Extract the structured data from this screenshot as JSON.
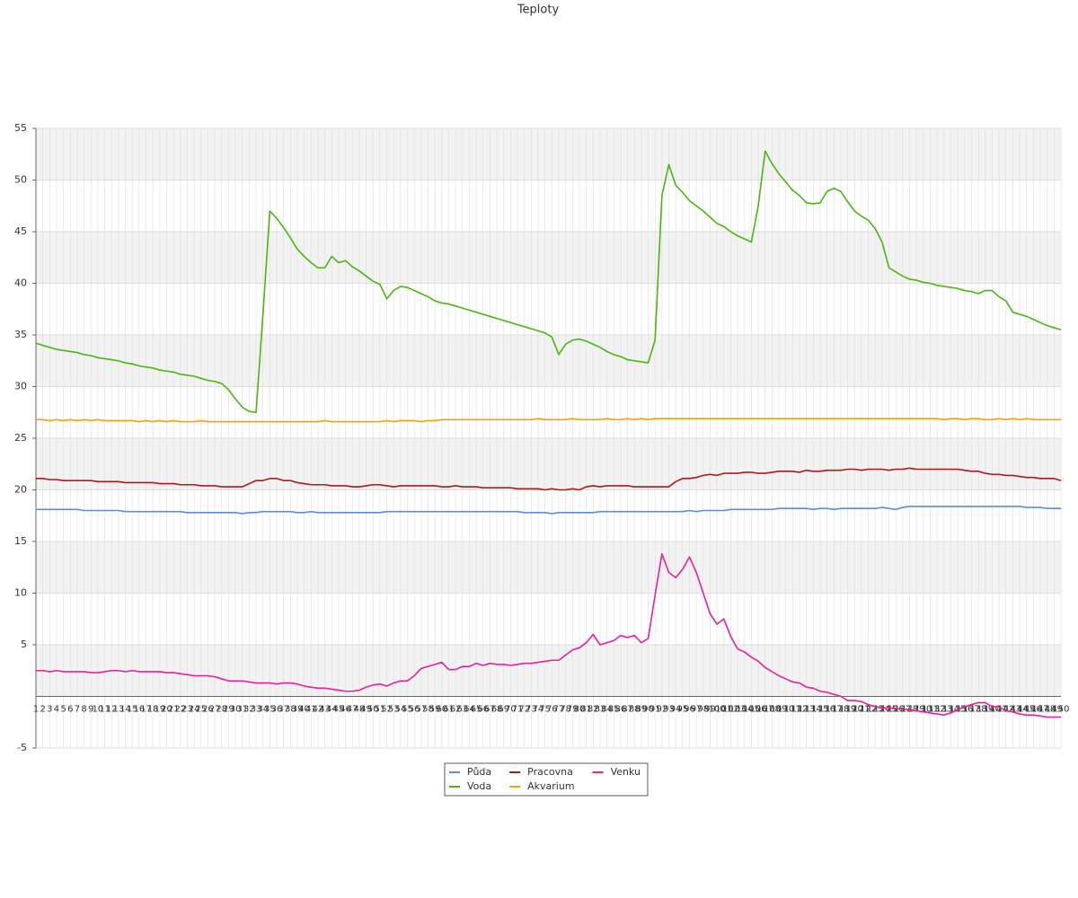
{
  "chart_data": {
    "type": "line",
    "title": "Teploty",
    "categories": [
      1,
      2,
      3,
      4,
      5,
      6,
      7,
      8,
      9,
      10,
      11,
      12,
      13,
      14,
      15,
      16,
      17,
      18,
      19,
      20,
      21,
      22,
      23,
      24,
      25,
      26,
      27,
      28,
      29,
      30,
      31,
      32,
      33,
      34,
      35,
      36,
      37,
      38,
      39,
      40,
      41,
      42,
      43,
      44,
      45,
      46,
      47,
      48,
      49,
      50,
      51,
      52,
      53,
      54,
      55,
      56,
      57,
      58,
      59,
      60,
      61,
      62,
      63,
      64,
      65,
      66,
      67,
      68,
      69,
      70,
      71,
      72,
      73,
      74,
      75,
      76,
      77,
      78,
      79,
      80,
      81,
      82,
      83,
      84,
      85,
      86,
      87,
      88,
      89,
      90,
      91,
      92,
      93,
      94,
      95,
      96,
      97,
      98,
      99,
      100,
      101,
      102,
      103,
      104,
      105,
      106,
      107,
      108,
      109,
      110,
      111,
      112,
      113,
      114,
      115,
      116,
      117,
      118,
      119,
      120,
      121,
      122,
      123,
      124,
      125,
      126,
      127,
      128,
      129,
      130,
      131,
      132,
      133,
      134,
      135,
      136,
      137,
      138,
      139,
      140,
      141,
      142,
      143,
      144,
      145,
      146,
      147,
      148,
      149,
      150
    ],
    "series": [
      {
        "name": "Půda",
        "color": "#5b8fd8",
        "values": [
          18.1,
          18.1,
          18.1,
          18.1,
          18.1,
          18.1,
          18.1,
          18.0,
          18.0,
          18.0,
          18.0,
          18.0,
          18.0,
          17.9,
          17.9,
          17.9,
          17.9,
          17.9,
          17.9,
          17.9,
          17.9,
          17.9,
          17.8,
          17.8,
          17.8,
          17.8,
          17.8,
          17.8,
          17.8,
          17.8,
          17.7,
          17.8,
          17.8,
          17.9,
          17.9,
          17.9,
          17.9,
          17.9,
          17.8,
          17.8,
          17.9,
          17.8,
          17.8,
          17.8,
          17.8,
          17.8,
          17.8,
          17.8,
          17.8,
          17.8,
          17.8,
          17.9,
          17.9,
          17.9,
          17.9,
          17.9,
          17.9,
          17.9,
          17.9,
          17.9,
          17.9,
          17.9,
          17.9,
          17.9,
          17.9,
          17.9,
          17.9,
          17.9,
          17.9,
          17.9,
          17.9,
          17.8,
          17.8,
          17.8,
          17.8,
          17.7,
          17.8,
          17.8,
          17.8,
          17.8,
          17.8,
          17.8,
          17.9,
          17.9,
          17.9,
          17.9,
          17.9,
          17.9,
          17.9,
          17.9,
          17.9,
          17.9,
          17.9,
          17.9,
          17.9,
          18.0,
          17.9,
          18.0,
          18.0,
          18.0,
          18.0,
          18.1,
          18.1,
          18.1,
          18.1,
          18.1,
          18.1,
          18.1,
          18.2,
          18.2,
          18.2,
          18.2,
          18.2,
          18.1,
          18.2,
          18.2,
          18.1,
          18.2,
          18.2,
          18.2,
          18.2,
          18.2,
          18.2,
          18.3,
          18.2,
          18.1,
          18.3,
          18.4,
          18.4,
          18.4,
          18.4,
          18.4,
          18.4,
          18.4,
          18.4,
          18.4,
          18.4,
          18.4,
          18.4,
          18.4,
          18.4,
          18.4,
          18.4,
          18.4,
          18.3,
          18.3,
          18.3,
          18.2,
          18.2,
          18.2
        ]
      },
      {
        "name": "Voda",
        "color": "#4bb511",
        "values": [
          34.2,
          34.0,
          33.8,
          33.6,
          33.5,
          33.4,
          33.3,
          33.1,
          33.0,
          32.8,
          32.7,
          32.6,
          32.5,
          32.3,
          32.2,
          32.0,
          31.9,
          31.8,
          31.6,
          31.5,
          31.4,
          31.2,
          31.1,
          31.0,
          30.8,
          30.6,
          30.5,
          30.3,
          29.7,
          28.8,
          28.0,
          27.6,
          27.5,
          37.0,
          47.0,
          46.3,
          45.4,
          44.4,
          43.3,
          42.6,
          42.0,
          41.5,
          41.5,
          42.6,
          42.0,
          42.2,
          41.6,
          41.2,
          40.7,
          40.2,
          39.9,
          38.5,
          39.3,
          39.7,
          39.6,
          39.3,
          39.0,
          38.7,
          38.3,
          38.1,
          38.0,
          37.8,
          37.6,
          37.4,
          37.2,
          37.0,
          36.8,
          36.6,
          36.4,
          36.2,
          36.0,
          35.8,
          35.6,
          35.4,
          35.2,
          34.8,
          33.1,
          34.1,
          34.5,
          34.6,
          34.4,
          34.1,
          33.8,
          33.4,
          33.1,
          32.9,
          32.6,
          32.5,
          32.4,
          32.3,
          34.5,
          48.5,
          51.5,
          49.5,
          48.8,
          48.0,
          47.5,
          47.0,
          46.4,
          45.8,
          45.5,
          45.0,
          44.6,
          44.3,
          44.0,
          47.5,
          52.8,
          51.6,
          50.6,
          49.8,
          49.0,
          48.5,
          47.8,
          47.7,
          47.8,
          48.9,
          49.2,
          48.9,
          47.9,
          47.0,
          46.5,
          46.1,
          45.3,
          44.0,
          41.5,
          41.1,
          40.7,
          40.4,
          40.3,
          40.1,
          40.0,
          39.8,
          39.7,
          39.6,
          39.5,
          39.3,
          39.2,
          39.0,
          39.3,
          39.3,
          38.7,
          38.3,
          37.2,
          37.0,
          36.8,
          36.5,
          36.2,
          35.9,
          35.7,
          35.5
        ]
      },
      {
        "name": "Pracovna",
        "color": "#b01818",
        "values": [
          21.1,
          21.1,
          21.0,
          21.0,
          20.9,
          20.9,
          20.9,
          20.9,
          20.9,
          20.8,
          20.8,
          20.8,
          20.8,
          20.7,
          20.7,
          20.7,
          20.7,
          20.7,
          20.6,
          20.6,
          20.6,
          20.5,
          20.5,
          20.5,
          20.4,
          20.4,
          20.4,
          20.3,
          20.3,
          20.3,
          20.3,
          20.6,
          20.9,
          20.9,
          21.1,
          21.1,
          20.9,
          20.9,
          20.7,
          20.6,
          20.5,
          20.5,
          20.5,
          20.4,
          20.4,
          20.4,
          20.3,
          20.3,
          20.4,
          20.5,
          20.5,
          20.4,
          20.3,
          20.4,
          20.4,
          20.4,
          20.4,
          20.4,
          20.4,
          20.3,
          20.3,
          20.4,
          20.3,
          20.3,
          20.3,
          20.2,
          20.2,
          20.2,
          20.2,
          20.2,
          20.1,
          20.1,
          20.1,
          20.1,
          20.0,
          20.1,
          20.0,
          20.0,
          20.1,
          20.0,
          20.3,
          20.4,
          20.3,
          20.4,
          20.4,
          20.4,
          20.4,
          20.3,
          20.3,
          20.3,
          20.3,
          20.3,
          20.3,
          20.8,
          21.1,
          21.1,
          21.2,
          21.4,
          21.5,
          21.4,
          21.6,
          21.6,
          21.6,
          21.7,
          21.7,
          21.6,
          21.6,
          21.7,
          21.8,
          21.8,
          21.8,
          21.7,
          21.9,
          21.8,
          21.8,
          21.9,
          21.9,
          21.9,
          22.0,
          22.0,
          21.9,
          22.0,
          22.0,
          22.0,
          21.9,
          22.0,
          22.0,
          22.1,
          22.0,
          22.0,
          22.0,
          22.0,
          22.0,
          22.0,
          22.0,
          21.9,
          21.8,
          21.8,
          21.6,
          21.5,
          21.5,
          21.4,
          21.4,
          21.3,
          21.2,
          21.2,
          21.1,
          21.1,
          21.1,
          20.9
        ]
      },
      {
        "name": "Akvarium",
        "color": "#f0a30a",
        "values": [
          26.8,
          26.8,
          26.7,
          26.8,
          26.7,
          26.8,
          26.7,
          26.8,
          26.7,
          26.8,
          26.7,
          26.7,
          26.7,
          26.7,
          26.7,
          26.6,
          26.7,
          26.6,
          26.7,
          26.6,
          26.7,
          26.6,
          26.6,
          26.6,
          26.7,
          26.6,
          26.6,
          26.6,
          26.6,
          26.6,
          26.6,
          26.6,
          26.6,
          26.6,
          26.6,
          26.6,
          26.6,
          26.6,
          26.6,
          26.6,
          26.6,
          26.6,
          26.7,
          26.6,
          26.6,
          26.6,
          26.6,
          26.6,
          26.6,
          26.6,
          26.6,
          26.7,
          26.6,
          26.7,
          26.7,
          26.7,
          26.6,
          26.7,
          26.7,
          26.8,
          26.8,
          26.8,
          26.8,
          26.8,
          26.8,
          26.8,
          26.8,
          26.8,
          26.8,
          26.8,
          26.8,
          26.8,
          26.8,
          26.9,
          26.8,
          26.8,
          26.8,
          26.8,
          26.9,
          26.8,
          26.8,
          26.8,
          26.8,
          26.9,
          26.8,
          26.8,
          26.9,
          26.8,
          26.9,
          26.8,
          26.9,
          26.9,
          26.9,
          26.9,
          26.9,
          26.9,
          26.9,
          26.9,
          26.9,
          26.9,
          26.9,
          26.9,
          26.9,
          26.9,
          26.9,
          26.9,
          26.9,
          26.9,
          26.9,
          26.9,
          26.9,
          26.9,
          26.9,
          26.9,
          26.9,
          26.9,
          26.9,
          26.9,
          26.9,
          26.9,
          26.9,
          26.9,
          26.9,
          26.9,
          26.9,
          26.9,
          26.9,
          26.9,
          26.9,
          26.9,
          26.9,
          26.9,
          26.8,
          26.9,
          26.9,
          26.8,
          26.9,
          26.9,
          26.8,
          26.8,
          26.9,
          26.8,
          26.9,
          26.8,
          26.9,
          26.8,
          26.8,
          26.8,
          26.8,
          26.8
        ]
      },
      {
        "name": "Venku",
        "color": "#e8209a",
        "values": [
          2.5,
          2.5,
          2.4,
          2.5,
          2.4,
          2.4,
          2.4,
          2.4,
          2.3,
          2.3,
          2.4,
          2.5,
          2.5,
          2.4,
          2.5,
          2.4,
          2.4,
          2.4,
          2.4,
          2.3,
          2.3,
          2.2,
          2.1,
          2.0,
          2.0,
          2.0,
          1.9,
          1.7,
          1.5,
          1.5,
          1.5,
          1.4,
          1.3,
          1.3,
          1.3,
          1.2,
          1.3,
          1.3,
          1.2,
          1.0,
          0.9,
          0.8,
          0.8,
          0.7,
          0.6,
          0.5,
          0.5,
          0.6,
          0.9,
          1.1,
          1.2,
          1.0,
          1.3,
          1.5,
          1.5,
          2.0,
          2.7,
          2.9,
          3.1,
          3.3,
          2.6,
          2.6,
          2.9,
          2.9,
          3.2,
          3.0,
          3.2,
          3.1,
          3.1,
          3.0,
          3.1,
          3.2,
          3.2,
          3.3,
          3.4,
          3.5,
          3.5,
          4.0,
          4.5,
          4.7,
          5.2,
          6.0,
          5.0,
          5.2,
          5.4,
          5.9,
          5.7,
          5.9,
          5.2,
          5.6,
          9.8,
          13.8,
          12.0,
          11.5,
          12.3,
          13.5,
          12.0,
          10.0,
          8.0,
          7.0,
          7.5,
          5.8,
          4.6,
          4.3,
          3.8,
          3.4,
          2.8,
          2.4,
          2.0,
          1.7,
          1.4,
          1.3,
          0.9,
          0.8,
          0.5,
          0.4,
          0.2,
          0,
          -0.4,
          -0.4,
          -0.5,
          -0.8,
          -1.0,
          -1.1,
          -1.1,
          -1.2,
          -1.2,
          -1.3,
          -1.4,
          -1.5,
          -1.6,
          -1.7,
          -1.8,
          -1.6,
          -1.3,
          -1.0,
          -0.8,
          -0.6,
          -0.6,
          -1.0,
          -1.0,
          -1.4,
          -1.5,
          -1.7,
          -1.8,
          -1.8,
          -1.9,
          -2.0,
          -2.0,
          -2.0
        ]
      }
    ],
    "ylim": [
      -5,
      55
    ],
    "yticks": [
      -5,
      5,
      10,
      15,
      20,
      25,
      30,
      35,
      40,
      45,
      50,
      55
    ],
    "grid": true
  }
}
